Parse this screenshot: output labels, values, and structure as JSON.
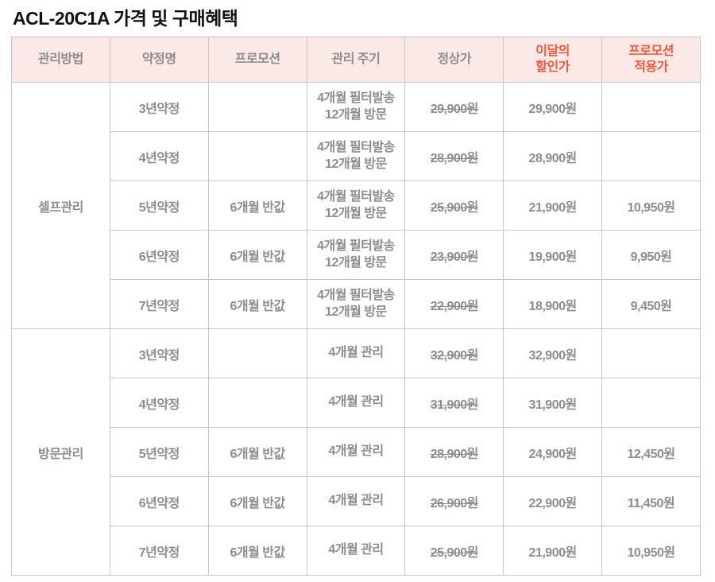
{
  "title": "ACL-20C1A 가격 및 구매혜택",
  "colors": {
    "accent_red": "#f6573a",
    "header_bg": "#fbe9e7",
    "text_gray": "#8d8d8d",
    "border_gray": "#c6c6c6"
  },
  "table": {
    "headers": [
      "관리방법",
      "약정명",
      "프로모션",
      "관리 주기",
      "정상가",
      "이달의\n할인가",
      "프로모션\n적용가"
    ],
    "groups": [
      {
        "name": "셀프관리",
        "rows": [
          {
            "term": "3년약정",
            "promo": "",
            "cycle": "4개월 필터발송\n12개월 방문",
            "normal": "29,900원",
            "discount": "29,900원",
            "promo_price": ""
          },
          {
            "term": "4년약정",
            "promo": "",
            "cycle": "4개월 필터발송\n12개월 방문",
            "normal": "28,900원",
            "discount": "28,900원",
            "promo_price": ""
          },
          {
            "term": "5년약정",
            "promo": "6개월 반값",
            "cycle": "4개월 필터발송\n12개월 방문",
            "normal": "25,900원",
            "discount": "21,900원",
            "promo_price": "10,950원"
          },
          {
            "term": "6년약정",
            "promo": "6개월 반값",
            "cycle": "4개월 필터발송\n12개월 방문",
            "normal": "23,900원",
            "discount": "19,900원",
            "promo_price": "9,950원"
          },
          {
            "term": "7년약정",
            "promo": "6개월 반값",
            "cycle": "4개월 필터발송\n12개월 방문",
            "normal": "22,900원",
            "discount": "18,900원",
            "promo_price": "9,450원"
          }
        ]
      },
      {
        "name": "방문관리",
        "rows": [
          {
            "term": "3년약정",
            "promo": "",
            "cycle": "4개월 관리",
            "normal": "32,900원",
            "discount": "32,900원",
            "promo_price": ""
          },
          {
            "term": "4년약정",
            "promo": "",
            "cycle": "4개월 관리",
            "normal": "31,900원",
            "discount": "31,900원",
            "promo_price": ""
          },
          {
            "term": "5년약정",
            "promo": "6개월 반값",
            "cycle": "4개월 관리",
            "normal": "28,900원",
            "discount": "24,900원",
            "promo_price": "12,450원"
          },
          {
            "term": "6년약정",
            "promo": "6개월 반값",
            "cycle": "4개월 관리",
            "normal": "26,900원",
            "discount": "22,900원",
            "promo_price": "11,450원"
          },
          {
            "term": "7년약정",
            "promo": "6개월 반값",
            "cycle": "4개월 관리",
            "normal": "25,900원",
            "discount": "21,900원",
            "promo_price": "10,950원"
          }
        ]
      }
    ]
  }
}
